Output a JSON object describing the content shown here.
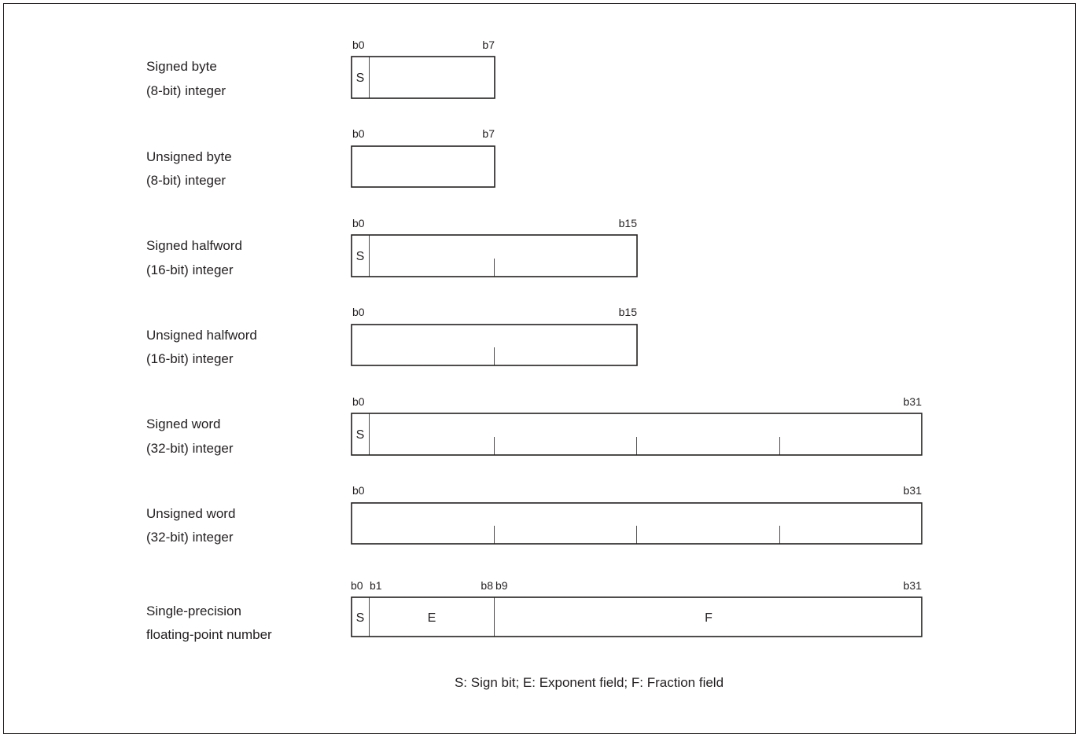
{
  "formats": [
    {
      "name": "signed-byte",
      "label_lines": [
        "Signed byte",
        "(8-bit) integer"
      ],
      "bit_labels": [
        "b0",
        "b7"
      ],
      "width_bits": 8,
      "fields": [
        "S",
        ""
      ]
    },
    {
      "name": "unsigned-byte",
      "label_lines": [
        "Unsigned byte",
        "(8-bit) integer"
      ],
      "bit_labels": [
        "b0",
        "b7"
      ],
      "width_bits": 8,
      "fields": [
        ""
      ]
    },
    {
      "name": "signed-halfword",
      "label_lines": [
        "Signed halfword",
        "(16-bit) integer"
      ],
      "bit_labels": [
        "b0",
        "b15"
      ],
      "width_bits": 16,
      "fields": [
        "S",
        ""
      ]
    },
    {
      "name": "unsigned-halfword",
      "label_lines": [
        "Unsigned halfword",
        "(16-bit) integer"
      ],
      "bit_labels": [
        "b0",
        "b15"
      ],
      "width_bits": 16,
      "fields": [
        ""
      ]
    },
    {
      "name": "signed-word",
      "label_lines": [
        "Signed word",
        "(32-bit) integer"
      ],
      "bit_labels": [
        "b0",
        "b31"
      ],
      "width_bits": 32,
      "fields": [
        "S",
        ""
      ]
    },
    {
      "name": "unsigned-word",
      "label_lines": [
        "Unsigned word",
        "(32-bit) integer"
      ],
      "bit_labels": [
        "b0",
        "b31"
      ],
      "width_bits": 32,
      "fields": [
        ""
      ]
    },
    {
      "name": "single-precision-float",
      "label_lines": [
        "Single-precision",
        "floating-point number"
      ],
      "bit_labels": [
        "b0",
        "b1",
        "b8",
        "b9",
        "b31"
      ],
      "width_bits": 32,
      "fields": [
        "S",
        "E",
        "F"
      ]
    }
  ],
  "legend": "S: Sign bit; E: Exponent field; F: Fraction field",
  "colors": {
    "ink": "#231f20",
    "background": "#ffffff"
  }
}
